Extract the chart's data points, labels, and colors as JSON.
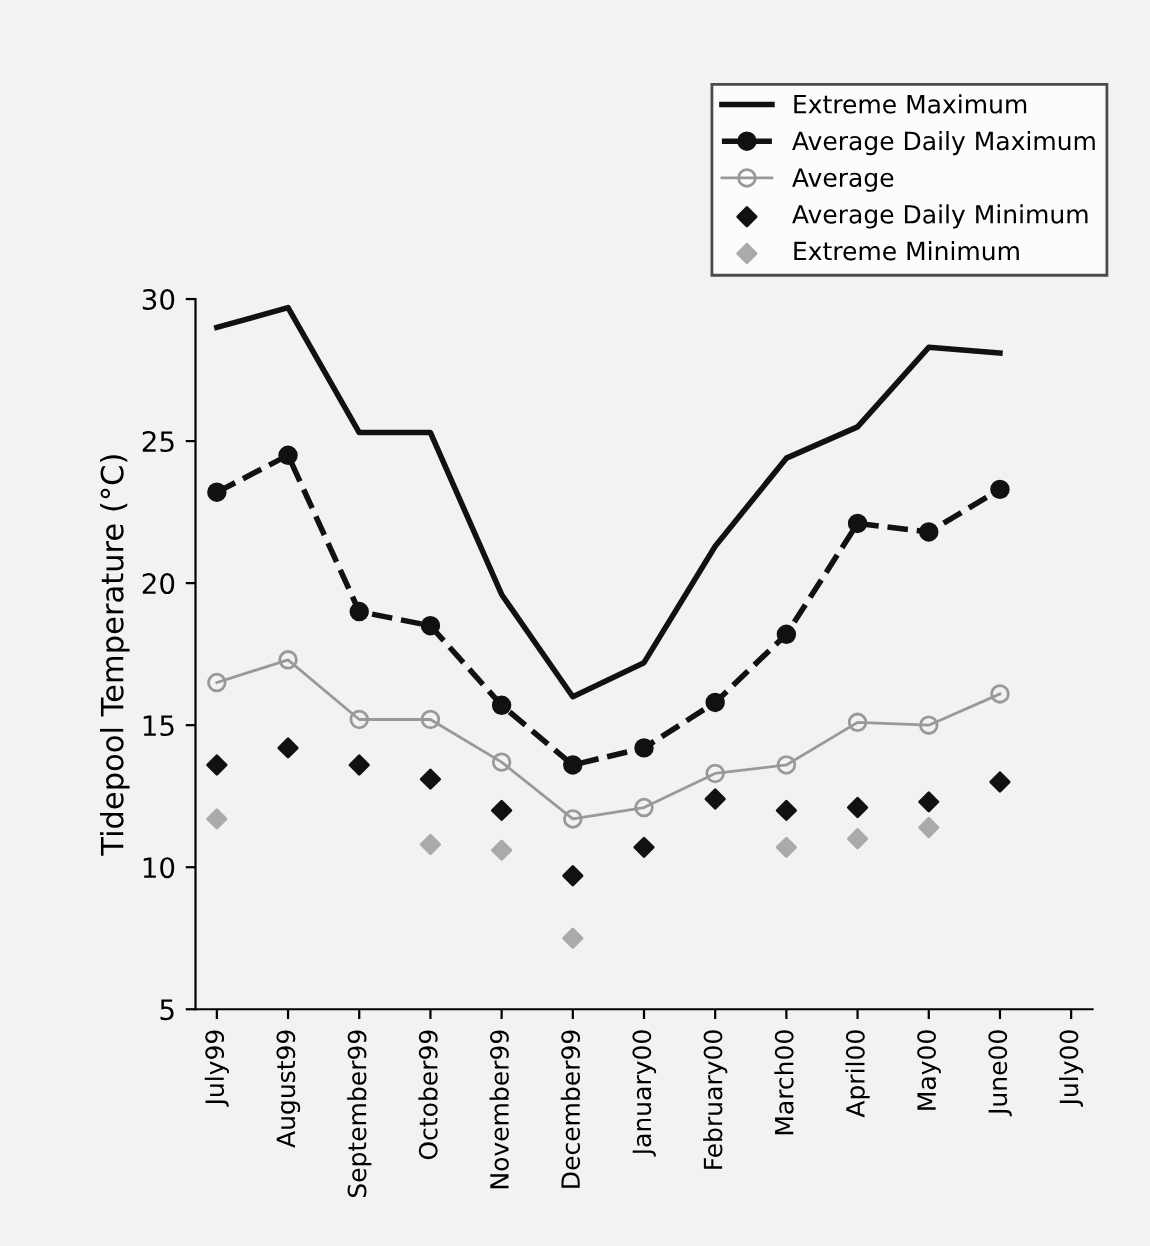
{
  "chart_data": {
    "type": "line",
    "ylabel": "Tidepool Temperature (°C)",
    "categories": [
      "July99",
      "August99",
      "September99",
      "October99",
      "November99",
      "December99",
      "January00",
      "February00",
      "March00",
      "April00",
      "May00",
      "June00",
      "July00"
    ],
    "ylim": [
      5,
      30
    ],
    "yticks": [
      5,
      10,
      15,
      20,
      25,
      30
    ],
    "grid": false,
    "legend": "top right",
    "series": [
      {
        "name": "Extreme Maximum",
        "color": "#111111",
        "line_style": "solid",
        "marker": "none",
        "values": [
          29.0,
          29.7,
          25.3,
          25.3,
          19.6,
          16.0,
          17.2,
          21.3,
          24.4,
          25.5,
          28.3,
          28.1,
          null
        ]
      },
      {
        "name": "Average Daily Maximum",
        "color": "#111111",
        "line_style": "dashed",
        "marker": "circle",
        "values": [
          23.2,
          24.5,
          19.0,
          18.5,
          15.7,
          13.6,
          14.2,
          15.8,
          18.2,
          22.1,
          21.8,
          23.3,
          null
        ]
      },
      {
        "name": "Average",
        "color": "#999999",
        "line_style": "solid",
        "marker": "circle",
        "values": [
          16.5,
          17.3,
          15.2,
          15.2,
          13.7,
          11.7,
          12.1,
          13.3,
          13.6,
          15.1,
          15.0,
          16.1,
          null
        ]
      },
      {
        "name": "Average Daily Minimum",
        "type": "scatter",
        "color": "#111111",
        "marker": "diamond",
        "values": [
          13.6,
          14.2,
          13.6,
          13.1,
          12.0,
          9.7,
          10.7,
          12.4,
          12.0,
          12.1,
          12.3,
          13.0,
          null
        ]
      },
      {
        "name": "Extreme Minimum",
        "type": "scatter",
        "color": "#aaaaaa",
        "marker": "diamond",
        "values": [
          11.7,
          null,
          null,
          10.8,
          10.6,
          7.5,
          null,
          null,
          10.7,
          11.0,
          11.4,
          null,
          null
        ]
      }
    ]
  }
}
